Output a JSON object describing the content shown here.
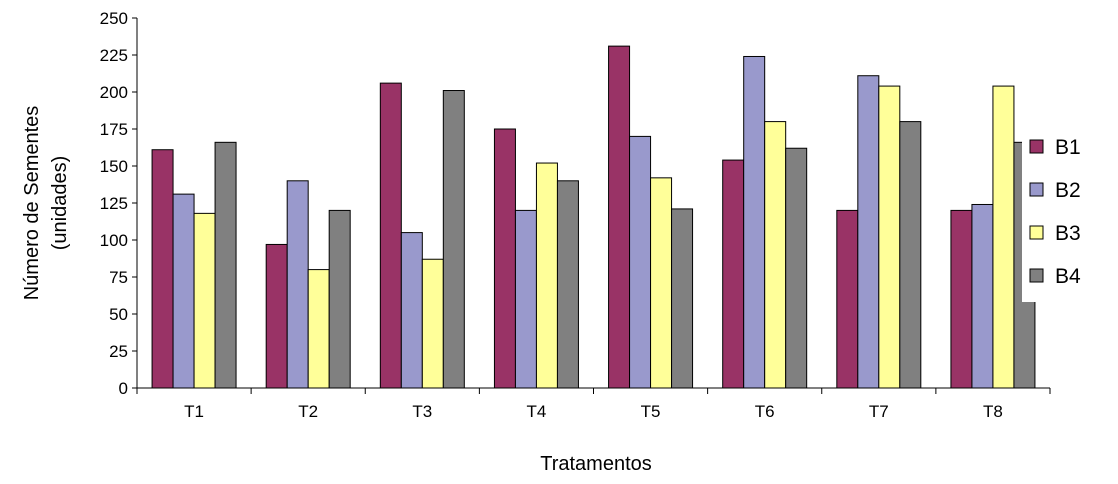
{
  "chart_data": {
    "type": "bar",
    "xlabel": "Tratamentos",
    "ylabel_lines": [
      "Número de Sementes",
      "(unidades)"
    ],
    "ylim": [
      0,
      250
    ],
    "yticks": [
      0,
      25,
      50,
      75,
      100,
      125,
      150,
      175,
      200,
      225,
      250
    ],
    "grid": false,
    "legend_position": "right",
    "categories": [
      "T1",
      "T2",
      "T3",
      "T4",
      "T5",
      "T6",
      "T7",
      "T8"
    ],
    "series": [
      {
        "name": "B1",
        "color": "#993366",
        "values": [
          161,
          97,
          206,
          175,
          231,
          154,
          120,
          120
        ]
      },
      {
        "name": "B2",
        "color": "#9999CC",
        "values": [
          131,
          140,
          105,
          120,
          170,
          224,
          211,
          124
        ]
      },
      {
        "name": "B3",
        "color": "#FFFF99",
        "values": [
          118,
          80,
          87,
          152,
          142,
          180,
          204,
          204
        ]
      },
      {
        "name": "B4",
        "color": "#808080",
        "values": [
          166,
          120,
          201,
          140,
          121,
          162,
          180,
          166
        ]
      }
    ]
  }
}
